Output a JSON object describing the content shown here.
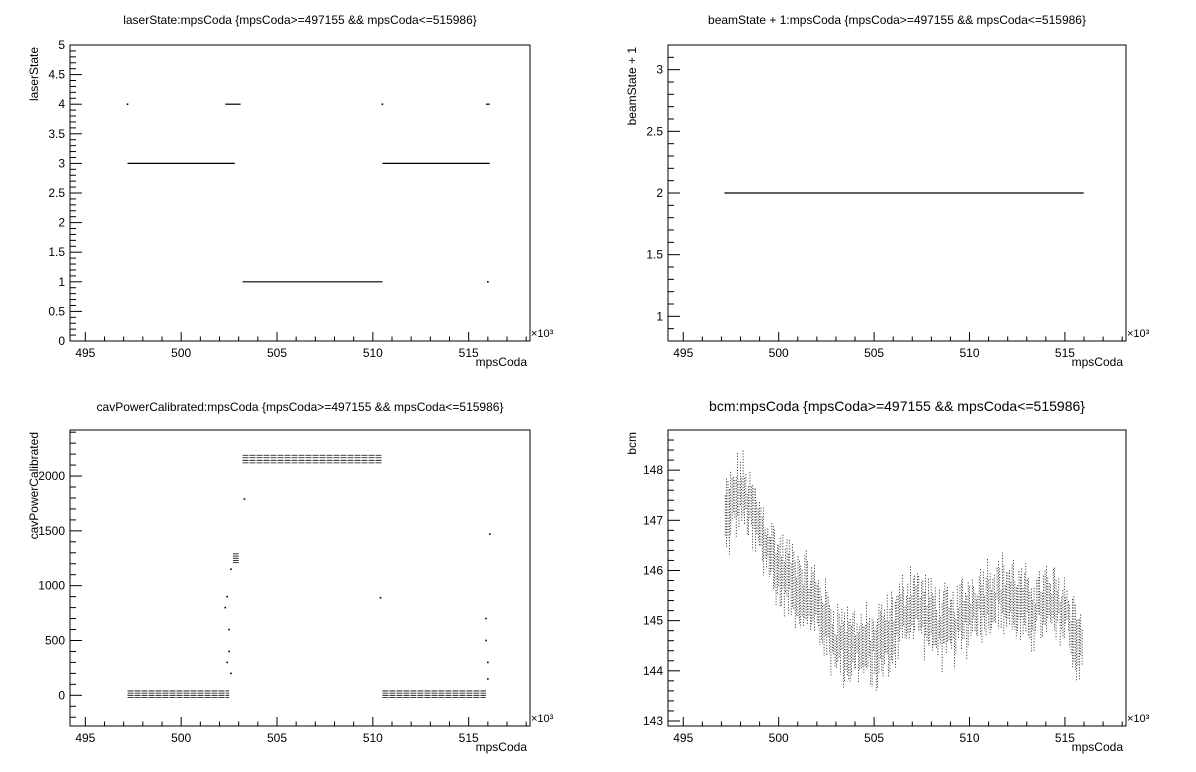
{
  "chart_data": [
    {
      "type": "line",
      "title": "laserState:mpsCoda {mpsCoda>=497155 && mpsCoda<=515986}",
      "xlabel": "mpsCoda",
      "ylabel": "laserState",
      "x_multiplier": "×10³",
      "xlim": [
        494.2,
        518.2
      ],
      "ylim": [
        0,
        5
      ],
      "xticks": [
        495,
        500,
        505,
        510,
        515
      ],
      "yticks": [
        0,
        0.5,
        1,
        1.5,
        2,
        2.5,
        3,
        3.5,
        4,
        4.5,
        5
      ],
      "ytick_labels": [
        "0",
        "0.5",
        "1",
        "1.5",
        "2",
        "2.5",
        "3",
        "3.5",
        "4",
        "4.5",
        "5"
      ],
      "grid": false,
      "segments": [
        {
          "x": [
            497.2,
            502.8
          ],
          "y": 3
        },
        {
          "x": [
            502.3,
            503.1
          ],
          "y": 4
        },
        {
          "x": [
            503.2,
            510.5
          ],
          "y": 1
        },
        {
          "x": [
            510.5,
            516.1
          ],
          "y": 3
        },
        {
          "x": [
            515.9,
            516.1
          ],
          "y": 4
        }
      ],
      "points": [
        {
          "x": 497.2,
          "y": 4
        },
        {
          "x": 510.5,
          "y": 4
        },
        {
          "x": 516.0,
          "y": 1
        }
      ]
    },
    {
      "type": "line",
      "title": "beamState + 1:mpsCoda {mpsCoda>=497155 && mpsCoda<=515986}",
      "xlabel": "mpsCoda",
      "ylabel": "beamState + 1",
      "x_multiplier": "×10³",
      "xlim": [
        494.2,
        518.2
      ],
      "ylim": [
        0.8,
        3.2
      ],
      "xticks": [
        495,
        500,
        505,
        510,
        515
      ],
      "yticks": [
        1,
        1.5,
        2,
        2.5,
        3
      ],
      "ytick_labels": [
        "1",
        "1.5",
        "2",
        "2.5",
        "3"
      ],
      "grid": false,
      "segments": [
        {
          "x": [
            497.155,
            515.986
          ],
          "y": 2
        }
      ],
      "points": []
    },
    {
      "type": "scatter",
      "title": "cavPowerCalibrated:mpsCoda {mpsCoda>=497155 && mpsCoda<=515986}",
      "xlabel": "mpsCoda",
      "ylabel": "cavPowerCalibrated",
      "x_multiplier": "×10³",
      "xlim": [
        494.2,
        518.2
      ],
      "ylim": [
        -280,
        2420
      ],
      "xticks": [
        495,
        500,
        505,
        510,
        515
      ],
      "yticks": [
        0,
        500,
        1000,
        1500,
        2000
      ],
      "ytick_labels": [
        "0",
        "500",
        "1000",
        "1500",
        "2000"
      ],
      "grid": false,
      "bands": [
        {
          "x": [
            497.2,
            502.5
          ],
          "y": [
            -20,
            40
          ]
        },
        {
          "x": [
            503.2,
            510.5
          ],
          "y": [
            2120,
            2190
          ]
        },
        {
          "x": [
            510.5,
            515.9
          ],
          "y": [
            -20,
            40
          ]
        },
        {
          "x": [
            502.7,
            503.0
          ],
          "y": [
            1210,
            1290
          ]
        }
      ],
      "points": [
        {
          "x": 502.3,
          "y": 800
        },
        {
          "x": 502.4,
          "y": 900
        },
        {
          "x": 502.5,
          "y": 600
        },
        {
          "x": 502.5,
          "y": 400
        },
        {
          "x": 502.4,
          "y": 300
        },
        {
          "x": 502.6,
          "y": 200
        },
        {
          "x": 502.6,
          "y": 1150
        },
        {
          "x": 503.3,
          "y": 1790
        },
        {
          "x": 510.4,
          "y": 890
        },
        {
          "x": 515.9,
          "y": 700
        },
        {
          "x": 515.9,
          "y": 500
        },
        {
          "x": 516.0,
          "y": 300
        },
        {
          "x": 516.0,
          "y": 150
        },
        {
          "x": 516.1,
          "y": 1470
        }
      ]
    },
    {
      "type": "scatter",
      "title": "bcm:mpsCoda {mpsCoda>=497155 && mpsCoda<=515986}",
      "xlabel": "mpsCoda",
      "ylabel": "bcm",
      "x_multiplier": "×10³",
      "xlim": [
        494.2,
        518.2
      ],
      "ylim": [
        142.9,
        148.8
      ],
      "xticks": [
        495,
        500,
        505,
        510,
        515
      ],
      "yticks": [
        143,
        144,
        145,
        146,
        147,
        148
      ],
      "ytick_labels": [
        "143",
        "144",
        "145",
        "146",
        "147",
        "148"
      ],
      "grid": false,
      "trend": [
        {
          "x": 497.2,
          "y": 147.0
        },
        {
          "x": 498.0,
          "y": 147.6
        },
        {
          "x": 499.0,
          "y": 146.8
        },
        {
          "x": 500.0,
          "y": 146.0
        },
        {
          "x": 501.0,
          "y": 145.7
        },
        {
          "x": 502.0,
          "y": 145.3
        },
        {
          "x": 503.0,
          "y": 144.6
        },
        {
          "x": 504.0,
          "y": 144.5
        },
        {
          "x": 505.0,
          "y": 144.4
        },
        {
          "x": 506.0,
          "y": 144.8
        },
        {
          "x": 507.0,
          "y": 145.4
        },
        {
          "x": 508.0,
          "y": 145.0
        },
        {
          "x": 509.0,
          "y": 144.8
        },
        {
          "x": 510.0,
          "y": 145.2
        },
        {
          "x": 511.0,
          "y": 145.5
        },
        {
          "x": 512.0,
          "y": 145.5
        },
        {
          "x": 513.0,
          "y": 145.2
        },
        {
          "x": 514.0,
          "y": 145.3
        },
        {
          "x": 515.0,
          "y": 145.2
        },
        {
          "x": 515.9,
          "y": 144.4
        }
      ],
      "spread": 0.7
    }
  ]
}
